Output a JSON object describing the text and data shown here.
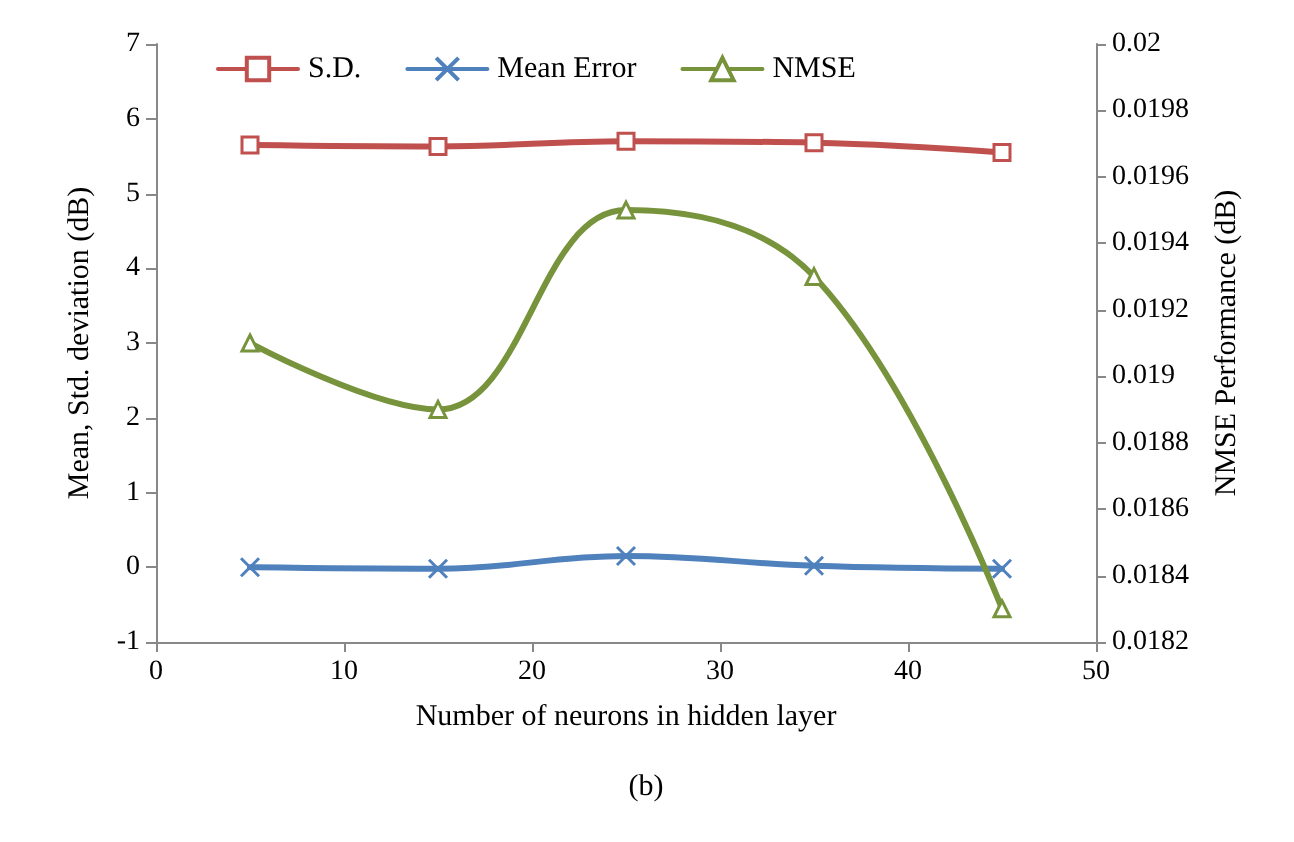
{
  "chart_data": {
    "type": "line",
    "xlabel": "Number of neurons in hidden layer",
    "ylabel": "Mean, Std. deviation (dB)",
    "y2label": "NMSE Performance (dB)",
    "x": [
      5,
      15,
      25,
      35,
      45
    ],
    "series": [
      {
        "name": "S.D.",
        "color": "#c0504d",
        "marker": "square",
        "values": [
          5.65,
          5.63,
          5.7,
          5.68,
          5.55
        ]
      },
      {
        "name": "Mean Error",
        "color": "#4f81bd",
        "marker": "cross",
        "values": [
          0,
          -0.02,
          0.15,
          0.02,
          -0.02
        ]
      },
      {
        "name": "NMSE",
        "color": "#77933c",
        "marker": "triangle",
        "axis": "y2",
        "values": [
          0.0191,
          0.0189,
          0.0195,
          0.0193,
          0.0183
        ]
      }
    ],
    "xlim": [
      0,
      50
    ],
    "xticks": [
      0,
      10,
      20,
      30,
      40,
      50
    ],
    "ylim": [
      -1,
      7
    ],
    "yticks": [
      -1,
      0,
      1,
      2,
      3,
      4,
      5,
      6,
      7
    ],
    "y2lim": [
      0.0182,
      0.02
    ],
    "y2ticks": [
      0.0182,
      0.0184,
      0.0186,
      0.0188,
      0.019,
      0.0192,
      0.0194,
      0.0196,
      0.0198,
      0.02
    ],
    "legend": "top",
    "grid": false,
    "annotations": [
      "(b)"
    ]
  }
}
